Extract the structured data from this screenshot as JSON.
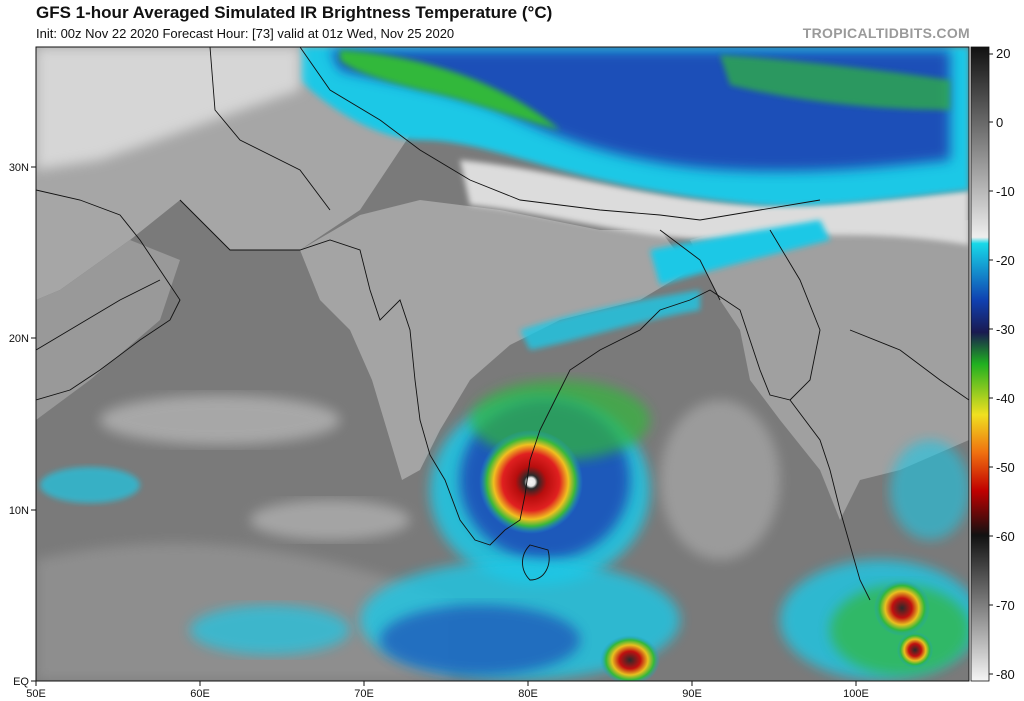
{
  "header": {
    "title": "GFS 1-hour Averaged Simulated IR Brightness Temperature (°C)",
    "subtitle": "Init: 00z Nov 22 2020   Forecast Hour: [73]   valid at 01z Wed, Nov 25 2020",
    "source": "TROPICALTIDBITS.COM"
  },
  "map": {
    "lon_labels": [
      "50E",
      "60E",
      "70E",
      "80E",
      "90E",
      "100E"
    ],
    "lat_labels": [
      "30N",
      "20N",
      "10N",
      "EQ"
    ]
  },
  "colorbar": {
    "labels": [
      "20",
      "0",
      "-10",
      "-20",
      "-30",
      "-40",
      "-50",
      "-60",
      "-70",
      "-80"
    ]
  },
  "colors": {
    "ocean_gray": "#7a7a7a",
    "land_gray": "#a8a8a8",
    "cyan": "#1ec8e6",
    "blue": "#1d4fb8",
    "green": "#33b83a",
    "yellow": "#f0e020",
    "red": "#d81818",
    "black": "#161616"
  }
}
